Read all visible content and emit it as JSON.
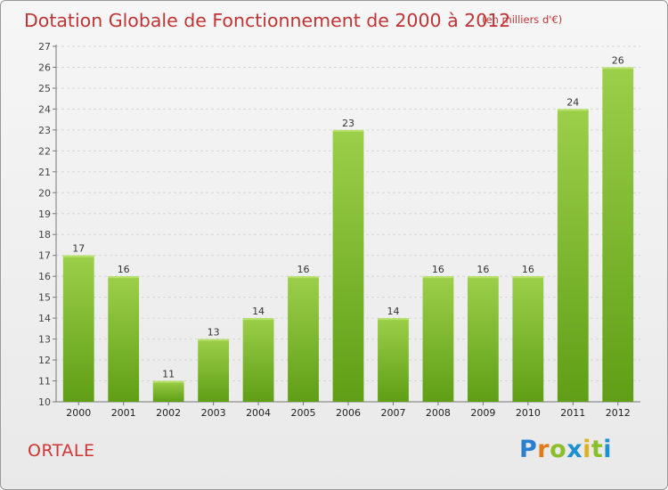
{
  "header": {
    "title": "Dotation Globale de Fonctionnement de 2000 à 2012",
    "subtitle": "(en milliers d'€)"
  },
  "footer": {
    "commune": "ORTALE",
    "brand_letters": [
      "P",
      "r",
      "o",
      "x",
      "i",
      "t",
      "i"
    ],
    "brand_colors": [
      "#2a7fd0",
      "#e07b1a",
      "#8bbf2a",
      "#1e90d0",
      "#e0b020",
      "#8bbf2a",
      "#1e90d0"
    ]
  },
  "chart_data": {
    "type": "bar",
    "categories": [
      "2000",
      "2001",
      "2002",
      "2003",
      "2004",
      "2005",
      "2006",
      "2007",
      "2008",
      "2009",
      "2010",
      "2011",
      "2012"
    ],
    "values": [
      17,
      16,
      11,
      13,
      14,
      16,
      23,
      14,
      16,
      16,
      16,
      24,
      26
    ],
    "ylim": [
      10,
      27
    ],
    "yticks": [
      10,
      11,
      12,
      13,
      14,
      15,
      16,
      17,
      18,
      19,
      20,
      21,
      22,
      23,
      24,
      25,
      26,
      27
    ],
    "grid": true,
    "bar_color_top": "#9ccf4a",
    "bar_color_bottom": "#5f9e16"
  }
}
